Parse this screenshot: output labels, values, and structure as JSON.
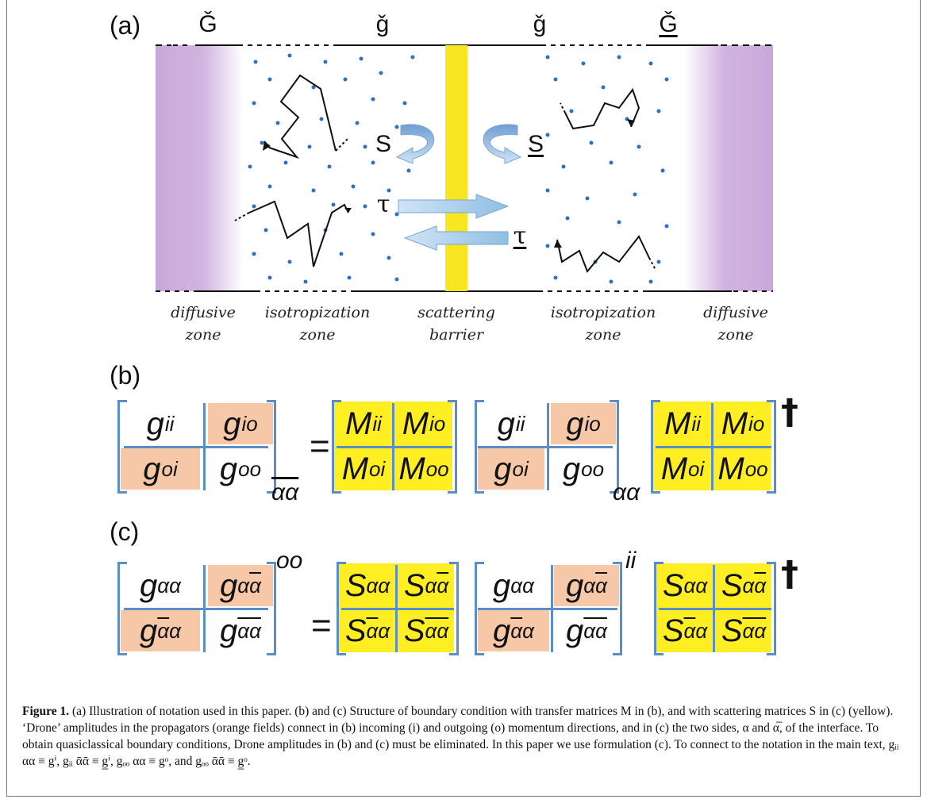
{
  "panel_a": {
    "label": "(a)",
    "top_labels": [
      "Ǧ",
      "ǧ",
      "ǧ",
      "Ǧ"
    ],
    "arrow_labels": {
      "S_left": "S",
      "S_right": "S",
      "tau_top": "τ",
      "tau_bottom": "τ"
    },
    "zones": [
      {
        "line1": "diffusive",
        "line2": "zone"
      },
      {
        "line1": "isotropization",
        "line2": "zone"
      },
      {
        "line1": "scattering",
        "line2": "barrier"
      },
      {
        "line1": "isotropization",
        "line2": "zone"
      },
      {
        "line1": "diffusive",
        "line2": "zone"
      }
    ],
    "colors": {
      "diffusive": "#c8a8d8",
      "barrier": "#f7e620",
      "arrow": "#9ec7e6",
      "dots": "#2f6fc4"
    }
  },
  "panel_b": {
    "label": "(b)",
    "lhs_cells": [
      "g",
      "ii",
      "g",
      "io",
      "g",
      "oi",
      "g",
      "oo"
    ],
    "lhs_subscript": "αα",
    "equals": "=",
    "m_cells": [
      "M",
      "ii",
      "M",
      "io",
      "M",
      "oi",
      "M",
      "oo"
    ],
    "mid_subscript": "αα",
    "dagger": "†"
  },
  "panel_c": {
    "label": "(c)",
    "lhs_superscript": "oo",
    "equals": "=",
    "mid_superscript": "ii",
    "dagger": "†",
    "g_symbol": "g",
    "s_symbol": "S",
    "sub_aa": "αα",
    "sub_abar": "α",
    "sub_bar_a": "α",
    "sub_bar_bar": "αα"
  },
  "caption": {
    "label": "Figure 1.",
    "text": " (a) Illustration of notation used in this paper. (b) and (c) Structure of boundary condition with transfer matrices M in (b), and with scattering matrices S in (c) (yellow). ‘Drone’ amplitudes in the propagators (orange fields) connect in (b) incoming (i) and outgoing (o) momentum directions, and in (c) the two sides, α and α̅, of the interface. To obtain quasiclassical boundary conditions, Drone amplitudes in (b) and (c) must be eliminated. In this paper we use formulation (c). To connect to the notation in the main text, gᵢᵢ αα ≡ gⁱ, gᵢᵢ ᾱᾱ ≡ g̲ⁱ, gₒₒ αα ≡ gᵒ, and gₒₒ ᾱᾱ ≡ g̲ᵒ."
  }
}
